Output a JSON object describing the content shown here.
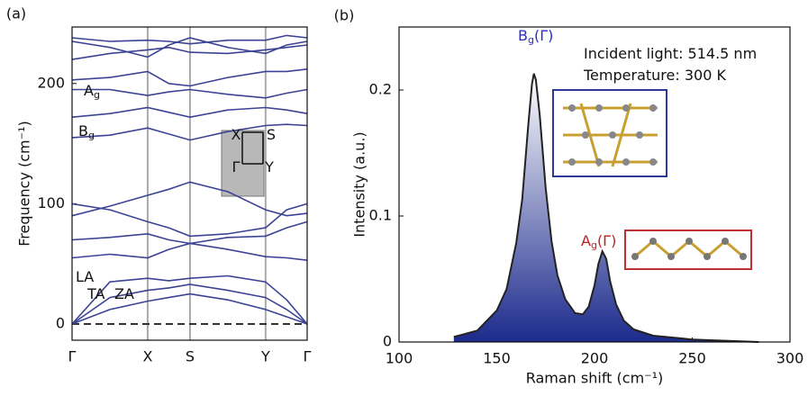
{
  "chart_data": [
    {
      "type": "line",
      "panel_label": "(a)",
      "ylabel": "Frequency (cm⁻¹)",
      "x": [
        0,
        0.5,
        1,
        1.28,
        1.56,
        2.06,
        2.56,
        2.84,
        3.11
      ],
      "xlim": [
        0,
        3.11
      ],
      "xticks": [
        {
          "value": 0,
          "label": "Γ"
        },
        {
          "value": 1,
          "label": "X"
        },
        {
          "value": 1.56,
          "label": "S"
        },
        {
          "value": 2.56,
          "label": "Y"
        },
        {
          "value": 3.11,
          "label": "Γ"
        }
      ],
      "xgrid": true,
      "ylim": [
        -13.5,
        247
      ],
      "yticks": [
        0,
        100,
        200
      ],
      "color": "#3c4395",
      "series": [
        {
          "values": [
            0,
            12,
            19,
            22,
            25,
            20,
            12,
            6,
            0
          ]
        },
        {
          "values": [
            0,
            22,
            28,
            30,
            33,
            28,
            22,
            12,
            0
          ]
        },
        {
          "values": [
            0,
            35,
            38,
            36,
            38,
            40,
            35,
            20,
            0
          ]
        },
        {
          "values": [
            55,
            58,
            55,
            62,
            67,
            62,
            56,
            55,
            53
          ]
        },
        {
          "values": [
            70,
            72,
            75,
            70,
            67,
            72,
            73,
            80,
            85
          ]
        },
        {
          "values": [
            90,
            98,
            107,
            112,
            118,
            110,
            95,
            90,
            92
          ]
        },
        {
          "values": [
            100,
            95,
            85,
            80,
            73,
            75,
            80,
            95,
            100
          ]
        },
        {
          "values": [
            155,
            157,
            163,
            158,
            153,
            160,
            165,
            166,
            165
          ]
        },
        {
          "values": [
            172,
            175,
            180,
            176,
            172,
            178,
            180,
            178,
            175
          ]
        },
        {
          "values": [
            195,
            195,
            190,
            193,
            195,
            191,
            188,
            192,
            195
          ]
        },
        {
          "values": [
            203,
            205,
            210,
            200,
            198,
            205,
            210,
            210,
            212
          ]
        },
        {
          "values": [
            220,
            225,
            228,
            230,
            226,
            225,
            228,
            230,
            232
          ]
        },
        {
          "values": [
            235,
            230,
            222,
            232,
            238,
            230,
            225,
            232,
            235
          ]
        },
        {
          "values": [
            238,
            235,
            236,
            235,
            233,
            236,
            236,
            240,
            238
          ]
        }
      ],
      "annotations": [
        {
          "text": "A",
          "sub": "g"
        },
        {
          "text": "B",
          "sub": "g"
        },
        {
          "text": "LA"
        },
        {
          "text": "TA"
        },
        {
          "text": "ZA"
        },
        {
          "text": "X"
        },
        {
          "text": "S"
        },
        {
          "text": "Γ"
        },
        {
          "text": "Y"
        }
      ]
    },
    {
      "type": "area",
      "panel_label": "(b)",
      "xlabel": "Raman shift (cm⁻¹)",
      "ylabel": "Intensity (a.u.)",
      "x": [
        128,
        140,
        150,
        155,
        160,
        163,
        166,
        168,
        169,
        170,
        172,
        175,
        178,
        181,
        185,
        190,
        194,
        197,
        200,
        202,
        204,
        206,
        208,
        211,
        215,
        220,
        230,
        250,
        284
      ],
      "values": [
        0.004,
        0.009,
        0.025,
        0.042,
        0.079,
        0.113,
        0.17,
        0.205,
        0.213,
        0.208,
        0.18,
        0.122,
        0.08,
        0.053,
        0.034,
        0.023,
        0.022,
        0.028,
        0.045,
        0.062,
        0.072,
        0.066,
        0.048,
        0.03,
        0.017,
        0.01,
        0.005,
        0.002,
        0
      ],
      "xlim": [
        100,
        300
      ],
      "xticks": [
        100,
        150,
        200,
        250,
        300
      ],
      "ylim": [
        0,
        0.25
      ],
      "yticks": [
        0,
        0.1,
        0.2
      ],
      "color": "#1c2a8c",
      "line_color": "#222222",
      "annotations": [
        {
          "text": "B",
          "sub": "g",
          "suffix": "(Γ)",
          "color": "#2a2ad0"
        },
        {
          "text": "A",
          "sub": "g",
          "suffix": "(Γ)",
          "color": "#c02020"
        },
        {
          "text": "Incident light: 514.5 nm"
        },
        {
          "text": "Temperature: 300 K"
        }
      ]
    }
  ]
}
